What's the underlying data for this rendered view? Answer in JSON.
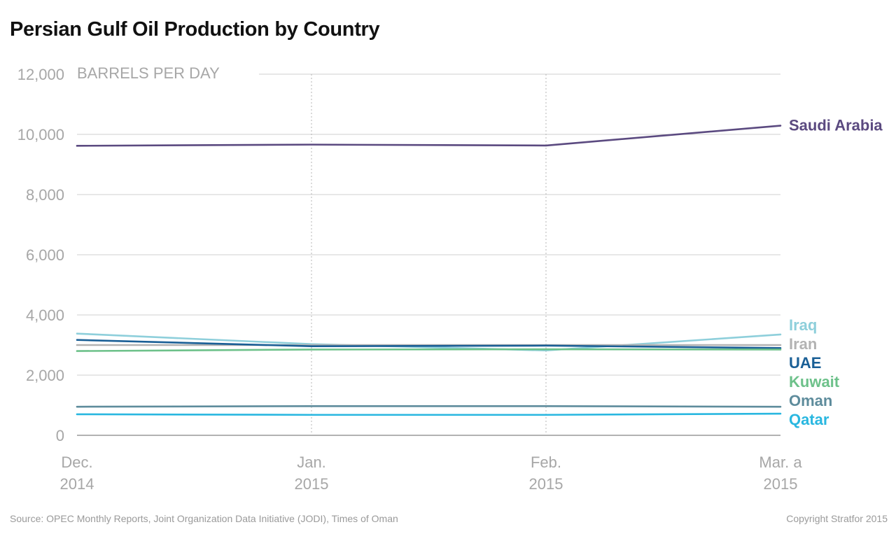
{
  "chart_data": {
    "type": "line",
    "title": "Persian Gulf Oil Production by Country",
    "ylabel": "BARRELS PER DAY",
    "ylim": [
      0,
      12000
    ],
    "yticks": [
      "0",
      "2,000",
      "4,000",
      "6,000",
      "8,000",
      "10,000",
      "12,000"
    ],
    "ytick_values": [
      0,
      2000,
      4000,
      6000,
      8000,
      10000,
      12000
    ],
    "categories": [
      {
        "month": "Dec.",
        "year": "2014"
      },
      {
        "month": "Jan.",
        "year": "2015"
      },
      {
        "month": "Feb.",
        "year": "2015"
      },
      {
        "month": "Mar. a",
        "year": "2015"
      }
    ],
    "grid": "horizontal lines; dotted vertical lines at Jan. and Feb.",
    "legend": "direct labels at right end of lines",
    "series": [
      {
        "name": "Saudi Arabia",
        "color": "#5b4a80",
        "values": [
          9620,
          9660,
          9630,
          10290
        ]
      },
      {
        "name": "Iraq",
        "color": "#8ecfdb",
        "values": [
          3380,
          3030,
          2820,
          3350
        ]
      },
      {
        "name": "Iran",
        "color": "#b3b3b3",
        "values": [
          3000,
          3000,
          3000,
          3000
        ]
      },
      {
        "name": "UAE",
        "color": "#1a5f96",
        "values": [
          3170,
          2960,
          2980,
          2900
        ]
      },
      {
        "name": "Kuwait",
        "color": "#6dc18a",
        "values": [
          2800,
          2850,
          2860,
          2850
        ]
      },
      {
        "name": "Oman",
        "color": "#5e8c9c",
        "values": [
          950,
          970,
          970,
          950
        ]
      },
      {
        "name": "Qatar",
        "color": "#29b7e0",
        "values": [
          700,
          680,
          680,
          720
        ]
      }
    ]
  },
  "footer": {
    "source": "Source: OPEC Monthly Reports, Joint Organization Data Initiative (JODI), Times of Oman",
    "copyright": "Copyright Stratfor 2015"
  }
}
